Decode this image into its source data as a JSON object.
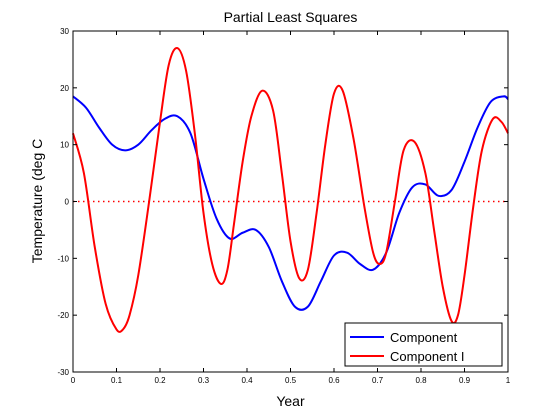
{
  "colors": {
    "background": "#ffffff",
    "axes": "#000000",
    "series_1": "#0000ff",
    "series_2": "#ff0000",
    "zero_line": "#ff0000"
  },
  "chart_data": {
    "type": "line",
    "title": "Partial Least Squares",
    "xlabel": "Year",
    "ylabel": "Temperature (deg C",
    "xlim": [
      0,
      1
    ],
    "ylim": [
      -30,
      30
    ],
    "x_ticks": [
      "0",
      "0.1",
      "0.2",
      "0.3",
      "0.4",
      "0.5",
      "0.6",
      "0.7",
      "0.8",
      "0.9",
      "1"
    ],
    "y_ticks": [
      "-30",
      "-20",
      "-10",
      "0",
      "10",
      "20",
      "30"
    ],
    "grid": false,
    "legend_position": "bottom-right",
    "reference_lines": [
      {
        "y": 0,
        "style": "dotted",
        "color": "#ff0000"
      }
    ],
    "series": [
      {
        "name": "Component",
        "color": "#0000ff",
        "x": [
          0,
          0.03,
          0.06,
          0.09,
          0.12,
          0.15,
          0.18,
          0.21,
          0.24,
          0.27,
          0.3,
          0.33,
          0.36,
          0.39,
          0.42,
          0.45,
          0.48,
          0.51,
          0.54,
          0.57,
          0.6,
          0.63,
          0.66,
          0.69,
          0.72,
          0.75,
          0.78,
          0.81,
          0.84,
          0.87,
          0.9,
          0.93,
          0.96,
          0.99,
          1.0
        ],
        "values": [
          18.5,
          16.5,
          13,
          10,
          9,
          10,
          12.5,
          14.5,
          15,
          12,
          4,
          -3,
          -6.5,
          -5.5,
          -5,
          -8,
          -14,
          -18.5,
          -18.5,
          -14,
          -9.5,
          -9,
          -11,
          -12,
          -9,
          -2,
          2.5,
          3,
          1,
          2,
          7,
          13,
          17.5,
          18.5,
          18
        ]
      },
      {
        "name": "Component I",
        "color": "#ff0000",
        "x": [
          0,
          0.025,
          0.05,
          0.075,
          0.1,
          0.115,
          0.13,
          0.15,
          0.175,
          0.2,
          0.22,
          0.24,
          0.26,
          0.28,
          0.3,
          0.32,
          0.34,
          0.355,
          0.37,
          0.39,
          0.41,
          0.435,
          0.46,
          0.48,
          0.5,
          0.52,
          0.54,
          0.56,
          0.58,
          0.6,
          0.62,
          0.645,
          0.67,
          0.69,
          0.705,
          0.72,
          0.74,
          0.76,
          0.785,
          0.81,
          0.83,
          0.85,
          0.87,
          0.885,
          0.9,
          0.92,
          0.94,
          0.965,
          0.985,
          1.0
        ],
        "values": [
          12,
          5,
          -8,
          -18,
          -22.5,
          -22.5,
          -20,
          -13,
          0,
          14,
          24,
          27,
          23,
          12,
          -2,
          -11,
          -14.5,
          -12,
          -4,
          7,
          15,
          19.5,
          16,
          5,
          -7,
          -13.5,
          -12,
          -2,
          10,
          19,
          19.5,
          11,
          -1,
          -9,
          -11,
          -9,
          0,
          9,
          10.5,
          5,
          -5,
          -15,
          -21,
          -20,
          -13,
          -1,
          9,
          14.5,
          14,
          12
        ]
      }
    ]
  }
}
